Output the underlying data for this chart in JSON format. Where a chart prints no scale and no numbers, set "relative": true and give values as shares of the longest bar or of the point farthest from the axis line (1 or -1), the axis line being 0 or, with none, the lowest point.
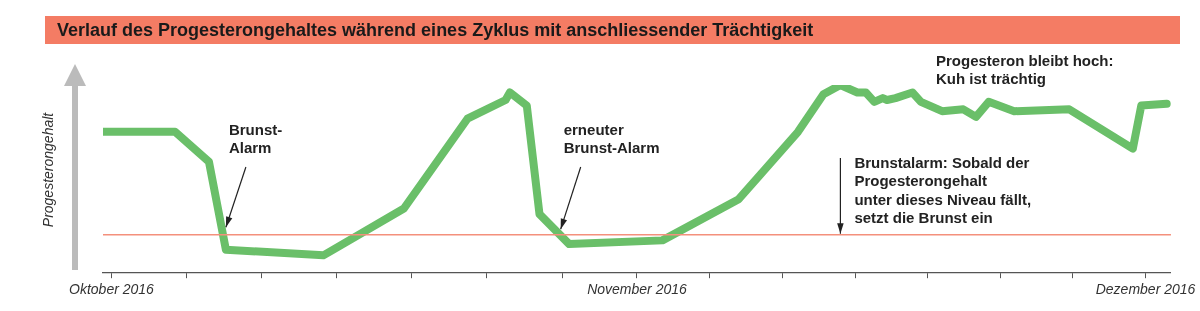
{
  "chart_data": {
    "type": "line",
    "relative": true,
    "title": "Verlauf des Progesterongehaltes während eines Zyklus mit anschliessender Trächtigkeit",
    "ylabel": "Progesterongehalt",
    "x": [
      "2016-09-30T12:00",
      "2016-10-04T18:00",
      "2016-10-06T18:00",
      "2016-10-07T18:00",
      "2016-10-13T12:00",
      "2016-10-18T06:00",
      "2016-10-22",
      "2016-10-24T06:00",
      "2016-10-24T12:00",
      "2016-10-25T12:00",
      "2016-10-26T06:00",
      "2016-10-28",
      "2016-11-02T12:00",
      "2016-11-07",
      "2016-11-10T12:00",
      "2016-11-12",
      "2016-11-13",
      "2016-11-14",
      "2016-11-14T12:00",
      "2016-11-15",
      "2016-11-15T12:00",
      "2016-11-15T18:00",
      "2016-11-16T06:00",
      "2016-11-17T06:00",
      "2016-11-17T18:00",
      "2016-11-19",
      "2016-11-20T06:00",
      "2016-11-21",
      "2016-11-21T18:00",
      "2016-11-23T06:00",
      "2016-11-26T12:00",
      "2016-11-30T06:00",
      "2016-11-30T18:00",
      "2016-12-02T06:00"
    ],
    "series": [
      {
        "color": "#6abf69",
        "values": [
          0.75,
          0.75,
          0.59,
          0.12,
          0.09,
          0.34,
          0.82,
          0.92,
          0.96,
          0.89,
          0.31,
          0.15,
          0.17,
          0.39,
          0.75,
          0.95,
          1,
          0.96,
          0.96,
          0.91,
          0.93,
          0.92,
          0.93,
          0.96,
          0.91,
          0.86,
          0.87,
          0.83,
          0.91,
          0.86,
          0.87,
          0.66,
          0.89,
          0.9
        ]
      }
    ],
    "xlim": [
      "2016-09-30T12:00",
      "2016-12-02T12:00"
    ],
    "xticks": [
      {
        "value": "2016-10-01",
        "label": "Oktober 2016"
      },
      {
        "value": "2016-10-05T10:00",
        "label": null
      },
      {
        "value": "2016-10-09T21:00",
        "label": null
      },
      {
        "value": "2016-10-14T07:00",
        "label": null
      },
      {
        "value": "2016-10-18T17:00",
        "label": null
      },
      {
        "value": "2016-10-23T03:00",
        "label": null
      },
      {
        "value": "2016-10-27T14:00",
        "label": null
      },
      {
        "value": "2016-11-01",
        "label": "November 2016"
      },
      {
        "value": "2016-11-05T07:00",
        "label": null
      },
      {
        "value": "2016-11-09T14:00",
        "label": null
      },
      {
        "value": "2016-11-13T21:00",
        "label": null
      },
      {
        "value": "2016-11-18T03:00",
        "label": null
      },
      {
        "value": "2016-11-22T10:00",
        "label": null
      },
      {
        "value": "2016-11-26T17:00",
        "label": null
      },
      {
        "value": "2016-12-01",
        "label": "Dezember 2016"
      }
    ],
    "ref_lines": [
      {
        "axis": "y",
        "value": 0.2,
        "color": "#f4907c"
      }
    ],
    "annotations": [
      {
        "text": "Brunst-\nAlarm",
        "x": "2016-10-07T18:00",
        "y": 0.24
      },
      {
        "text": "erneuter\nBrunst-Alarm",
        "x": "2016-10-27T12:00",
        "y": 0.23
      },
      "Progesteron bleibt hoch:\nKuh ist trächtig",
      {
        "text": "Brunstalarm: Sobald der\nProgesterongehalt\nunter dieses Niveau fällt,\nsetzt die Brunst ein",
        "x": "2016-11-13",
        "y": 0.2
      }
    ],
    "grid": false,
    "legend": false,
    "marker": "none",
    "line_style": "solid"
  }
}
